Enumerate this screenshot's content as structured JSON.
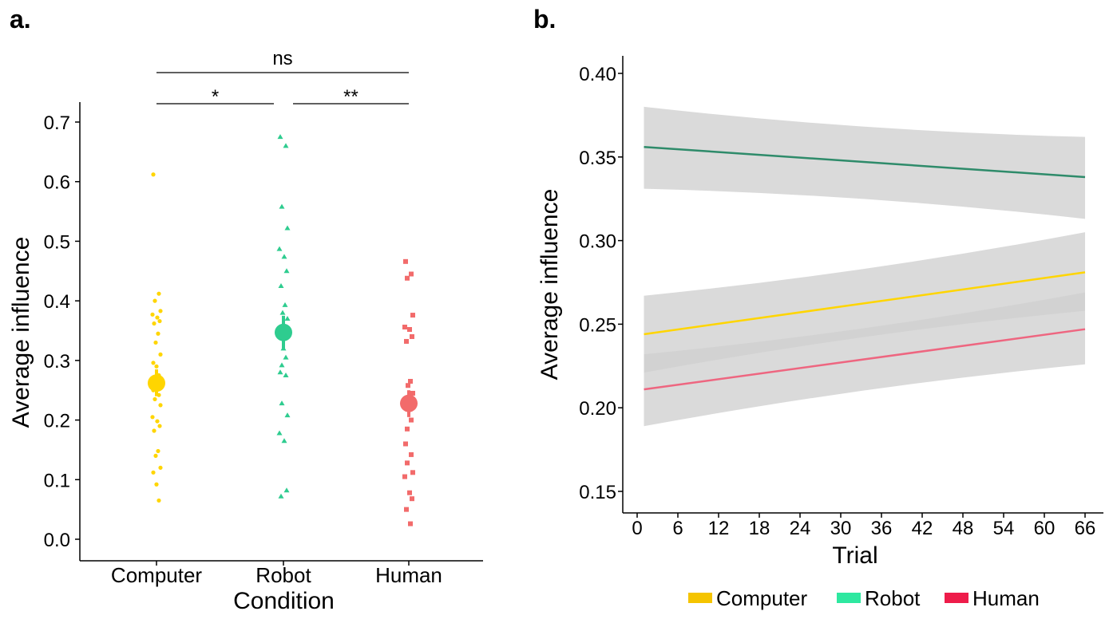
{
  "panel_a_label": "a.",
  "panel_b_label": "b.",
  "colors": {
    "computer": "#FFD500",
    "robot": "#2ECC8F",
    "human": "#F26B6B",
    "robot_line": "#2E8B6A",
    "human_line": "#EE6680",
    "ribbon": "#CFCFCF"
  },
  "chart_data": [
    {
      "type": "scatter",
      "title": "",
      "xlabel": "Condition",
      "ylabel": "Average influence",
      "categories": [
        "Computer",
        "Robot",
        "Human"
      ],
      "ylim": [
        0,
        0.7
      ],
      "yticks": [
        "0.0",
        "0.1",
        "0.2",
        "0.3",
        "0.4",
        "0.5",
        "0.6",
        "0.7"
      ],
      "grid": false,
      "series": [
        {
          "name": "Computer",
          "marker": "circle",
          "color": "#FFD500",
          "mean": 0.262,
          "ci": [
            0.24,
            0.285
          ],
          "values": [
            0.612,
            0.412,
            0.4,
            0.383,
            0.377,
            0.372,
            0.366,
            0.362,
            0.345,
            0.33,
            0.31,
            0.296,
            0.29,
            0.275,
            0.265,
            0.25,
            0.242,
            0.235,
            0.225,
            0.205,
            0.198,
            0.19,
            0.182,
            0.148,
            0.14,
            0.12,
            0.112,
            0.092,
            0.065
          ]
        },
        {
          "name": "Robot",
          "marker": "triangle",
          "color": "#2ECC8F",
          "mean": 0.347,
          "ci": [
            0.318,
            0.375
          ],
          "values": [
            0.675,
            0.66,
            0.558,
            0.522,
            0.487,
            0.474,
            0.45,
            0.425,
            0.393,
            0.38,
            0.37,
            0.34,
            0.32,
            0.305,
            0.292,
            0.28,
            0.275,
            0.228,
            0.208,
            0.178,
            0.165,
            0.082,
            0.072
          ]
        },
        {
          "name": "Human",
          "marker": "square",
          "color": "#F26B6B",
          "mean": 0.228,
          "ci": [
            0.205,
            0.25
          ],
          "values": [
            0.466,
            0.445,
            0.438,
            0.376,
            0.356,
            0.352,
            0.34,
            0.332,
            0.265,
            0.258,
            0.245,
            0.235,
            0.222,
            0.2,
            0.185,
            0.16,
            0.142,
            0.128,
            0.112,
            0.105,
            0.078,
            0.068,
            0.05,
            0.026
          ]
        }
      ],
      "annotations": [
        {
          "from": "Computer",
          "to": "Human",
          "label": "ns"
        },
        {
          "from": "Computer",
          "to": "Robot",
          "label": "*"
        },
        {
          "from": "Robot",
          "to": "Human",
          "label": "**"
        }
      ]
    },
    {
      "type": "line",
      "title": "",
      "xlabel": "Trial",
      "ylabel": "Average influence",
      "xlim": [
        -2,
        68
      ],
      "ylim": [
        0.135,
        0.41
      ],
      "xticks": [
        0,
        6,
        12,
        18,
        24,
        30,
        36,
        42,
        48,
        54,
        60,
        66
      ],
      "yticks": [
        "0.15",
        "0.20",
        "0.25",
        "0.30",
        "0.35",
        "0.40"
      ],
      "grid": false,
      "legend_position": "bottom",
      "series": [
        {
          "name": "Computer",
          "color": "#FFD500",
          "legend_color": "#F5C400",
          "x": [
            1,
            66
          ],
          "y": [
            0.244,
            0.281
          ],
          "ci_lower": [
            0.221,
            0.258
          ],
          "ci_upper": [
            0.267,
            0.305
          ]
        },
        {
          "name": "Robot",
          "color": "#2E8B6A",
          "legend_color": "#2EE8A0",
          "x": [
            1,
            66
          ],
          "y": [
            0.356,
            0.338
          ],
          "ci_lower": [
            0.331,
            0.313
          ],
          "ci_upper": [
            0.38,
            0.362
          ]
        },
        {
          "name": "Human",
          "color": "#EE6680",
          "legend_color": "#EE1C4A",
          "x": [
            1,
            66
          ],
          "y": [
            0.211,
            0.247
          ],
          "ci_lower": [
            0.189,
            0.226
          ],
          "ci_upper": [
            0.232,
            0.269
          ]
        }
      ]
    }
  ]
}
